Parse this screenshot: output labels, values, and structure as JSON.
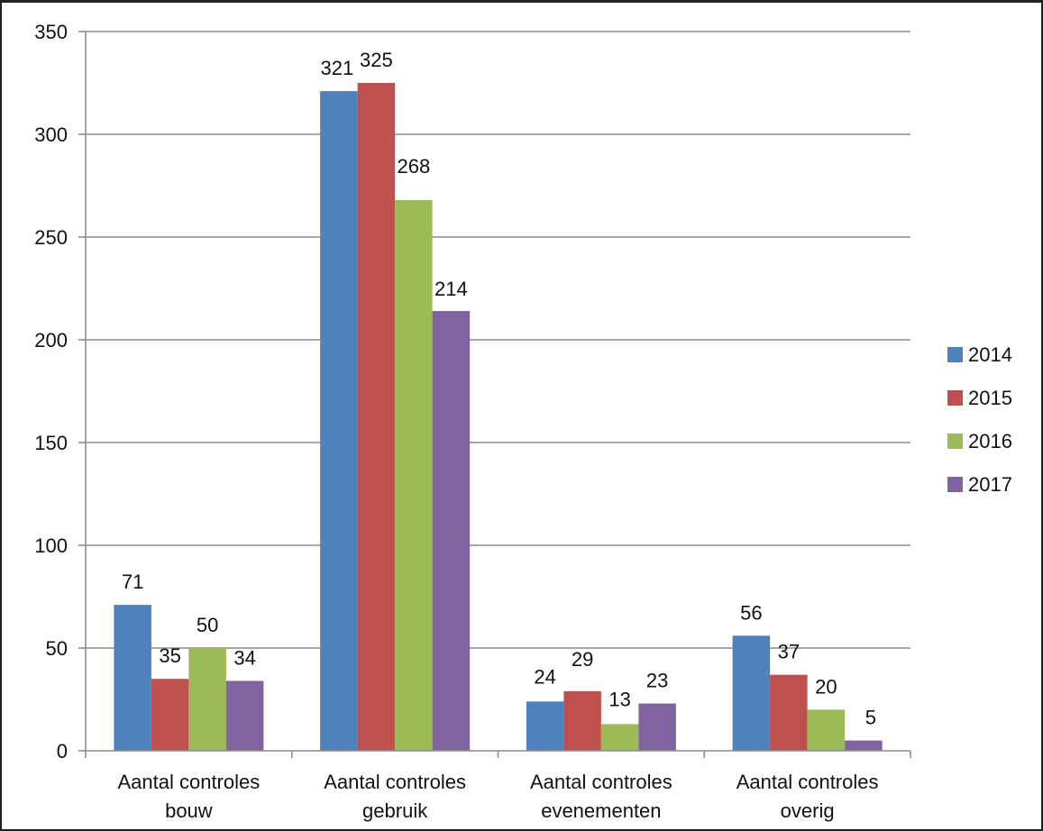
{
  "chart_data": {
    "type": "bar",
    "categories": [
      [
        "Aantal controles",
        "bouw"
      ],
      [
        "Aantal controles",
        "gebruik"
      ],
      [
        "Aantal controles",
        "evenementen"
      ],
      [
        "Aantal controles",
        "overig"
      ]
    ],
    "series": [
      {
        "name": "2014",
        "color": "#4F81BD",
        "values": [
          71,
          321,
          24,
          56
        ]
      },
      {
        "name": "2015",
        "color": "#C0504D",
        "values": [
          35,
          325,
          29,
          37
        ]
      },
      {
        "name": "2016",
        "color": "#9BBB59",
        "values": [
          50,
          268,
          13,
          20
        ]
      },
      {
        "name": "2017",
        "color": "#8064A2",
        "values": [
          34,
          214,
          23,
          5
        ]
      }
    ],
    "ylim": [
      0,
      350
    ],
    "yticks": [
      0,
      50,
      100,
      150,
      200,
      250,
      300,
      350
    ],
    "grid": true,
    "legend_position": "right",
    "data_labels": true
  }
}
